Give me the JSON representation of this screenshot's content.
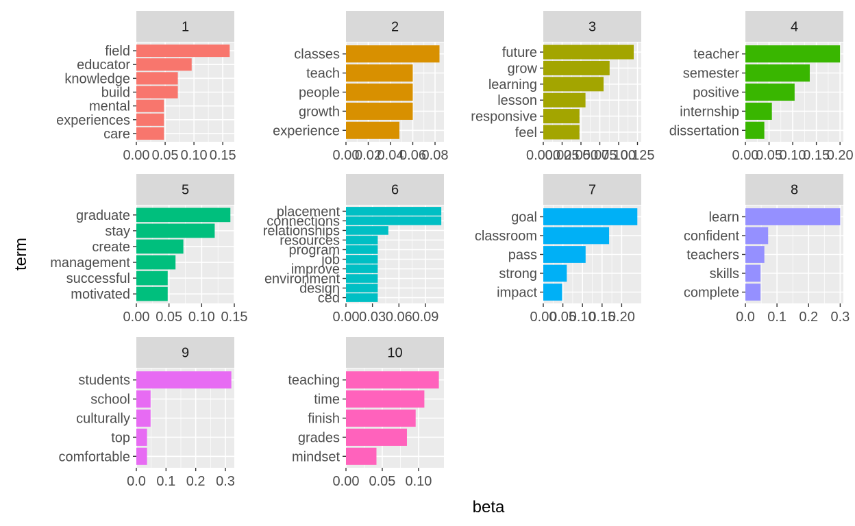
{
  "chart_data": {
    "type": "bar",
    "orientation": "horizontal",
    "xlabel": "beta",
    "ylabel": "term",
    "facets": [
      {
        "id": "1",
        "color": "#F8766D",
        "xlim": [
          0,
          0.17
        ],
        "ticks": [
          0,
          0.05,
          0.1,
          0.15
        ],
        "tick_labels": [
          "0.00",
          "0.05",
          "0.10",
          "0.15"
        ],
        "terms": [
          "field",
          "educator",
          "knowledge",
          "build",
          "mental",
          "experiences",
          "care"
        ],
        "values": [
          0.162,
          0.096,
          0.072,
          0.072,
          0.048,
          0.048,
          0.048
        ]
      },
      {
        "id": "2",
        "color": "#D89000",
        "xlim": [
          0,
          0.088
        ],
        "ticks": [
          0,
          0.02,
          0.04,
          0.06,
          0.08
        ],
        "tick_labels": [
          "0.00",
          "0.02",
          "0.04",
          "0.06",
          "0.08"
        ],
        "terms": [
          "classes",
          "teach",
          "people",
          "growth",
          "experience"
        ],
        "values": [
          0.084,
          0.06,
          0.06,
          0.06,
          0.048
        ]
      },
      {
        "id": "3",
        "color": "#A3A500",
        "xlim": [
          0,
          0.13
        ],
        "ticks": [
          0,
          0.025,
          0.05,
          0.075,
          0.1,
          0.125
        ],
        "tick_labels": [
          "0.000",
          "0.025",
          "0.050",
          "0.075",
          "0.100",
          "0.125"
        ],
        "terms": [
          "future",
          "grow",
          "learning",
          "lesson",
          "responsive",
          "feel"
        ],
        "values": [
          0.12,
          0.088,
          0.08,
          0.056,
          0.048,
          0.048
        ]
      },
      {
        "id": "4",
        "color": "#39B600",
        "xlim": [
          0,
          0.207
        ],
        "ticks": [
          0,
          0.05,
          0.1,
          0.15,
          0.2
        ],
        "tick_labels": [
          "0.00",
          "0.05",
          "0.10",
          "0.15",
          "0.20"
        ],
        "terms": [
          "teacher",
          "semester",
          "positive",
          "internship",
          "dissertation"
        ],
        "values": [
          0.2,
          0.136,
          0.104,
          0.056,
          0.04
        ]
      },
      {
        "id": "5",
        "color": "#00BF7D",
        "xlim": [
          0,
          0.15
        ],
        "ticks": [
          0,
          0.05,
          0.1,
          0.15
        ],
        "tick_labels": [
          "0.00",
          "0.05",
          "0.10",
          "0.15"
        ],
        "terms": [
          "graduate",
          "stay",
          "create",
          "management",
          "successful",
          "motivated"
        ],
        "values": [
          0.144,
          0.12,
          0.072,
          0.06,
          0.048,
          0.048
        ]
      },
      {
        "id": "6",
        "color": "#00BFC4",
        "xlim": [
          0,
          0.111
        ],
        "ticks": [
          0,
          0.03,
          0.06,
          0.09
        ],
        "tick_labels": [
          "0.00",
          "0.03",
          "0.06",
          "0.09"
        ],
        "terms": [
          "placement",
          "connections",
          "relationships",
          "resources",
          "program",
          "job",
          "improve",
          "environment",
          "design",
          "ced"
        ],
        "values": [
          0.108,
          0.108,
          0.048,
          0.036,
          0.036,
          0.036,
          0.036,
          0.036,
          0.036,
          0.036
        ]
      },
      {
        "id": "7",
        "color": "#00B0F6",
        "xlim": [
          0,
          0.25
        ],
        "ticks": [
          0,
          0.05,
          0.1,
          0.15,
          0.2
        ],
        "tick_labels": [
          "0.00",
          "0.05",
          "0.10",
          "0.15",
          "0.20"
        ],
        "terms": [
          "goal",
          "classroom",
          "pass",
          "strong",
          "impact"
        ],
        "values": [
          0.24,
          0.168,
          0.108,
          0.06,
          0.048
        ]
      },
      {
        "id": "8",
        "color": "#9590FF",
        "xlim": [
          0,
          0.31
        ],
        "ticks": [
          0,
          0.1,
          0.2,
          0.3
        ],
        "tick_labels": [
          "0.0",
          "0.1",
          "0.2",
          "0.3"
        ],
        "terms": [
          "learn",
          "confident",
          "teachers",
          "skills",
          "complete"
        ],
        "values": [
          0.3,
          0.072,
          0.06,
          0.048,
          0.048
        ]
      },
      {
        "id": "9",
        "color": "#E76BF3",
        "xlim": [
          0,
          0.33
        ],
        "ticks": [
          0,
          0.1,
          0.2,
          0.3
        ],
        "tick_labels": [
          "0.0",
          "0.1",
          "0.2",
          "0.3"
        ],
        "terms": [
          "students",
          "school",
          "culturally",
          "top",
          "comfortable"
        ],
        "values": [
          0.32,
          0.048,
          0.048,
          0.036,
          0.036
        ]
      },
      {
        "id": "10",
        "color": "#FF62BC",
        "xlim": [
          0,
          0.135
        ],
        "ticks": [
          0,
          0.05,
          0.1
        ],
        "tick_labels": [
          "0.00",
          "0.05",
          "0.10"
        ],
        "terms": [
          "teaching",
          "time",
          "finish",
          "grades",
          "mindset"
        ],
        "values": [
          0.128,
          0.108,
          0.096,
          0.084,
          0.042
        ]
      }
    ]
  }
}
